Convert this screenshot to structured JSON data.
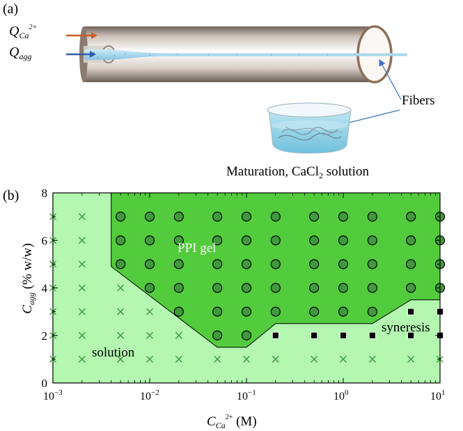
{
  "panel_a": {
    "label": "(a)",
    "q_ca": {
      "symbol": "Q",
      "sub": "Ca",
      "sup": "2+"
    },
    "q_agg": {
      "symbol": "Q",
      "sub": "agg"
    },
    "fibers_label": "Fibers",
    "maturation_label": "Maturation, CaCl",
    "maturation_sub": "2",
    "maturation_suffix": " solution",
    "colors": {
      "tube": "#a8998c",
      "fiber": "#a9d8ee",
      "dish_liquid": "#8fd0e4",
      "arrow_ca": "#c8602a",
      "arrow_agg": "#2f5ca8"
    }
  },
  "chart_data": {
    "type": "scatter",
    "panel_label": "(b)",
    "xscale": "log",
    "xlim": [
      0.001,
      10
    ],
    "ylim": [
      0,
      8
    ],
    "xticks": [
      {
        "value": 0.001,
        "base": "10",
        "exp": "−3"
      },
      {
        "value": 0.01,
        "base": "10",
        "exp": "−2"
      },
      {
        "value": 0.1,
        "base": "10",
        "exp": "−1"
      },
      {
        "value": 1,
        "base": "10",
        "exp": "0"
      },
      {
        "value": 10,
        "base": "10",
        "exp": "1"
      }
    ],
    "yticks": [
      "0",
      "2",
      "4",
      "6",
      "8"
    ],
    "xlabel": {
      "symbol": "C",
      "sub": "Ca",
      "sup": "2+",
      "unit": "(M)"
    },
    "ylabel": {
      "symbol": "C",
      "sub": "agg",
      "unit": "(% w/w)"
    },
    "region_labels": {
      "gel": "PPI gel",
      "solution": "solution",
      "syneresis": "syneresis"
    },
    "colors": {
      "solution_region": "#b3f7b0",
      "gel_region": "#52cc3c",
      "gel_marker": "#3f9a3a",
      "syneresis_marker": "#000000",
      "solution_marker": "#3a9a3a"
    },
    "gel_boundary": [
      [
        0.004,
        8
      ],
      [
        0.004,
        4.9
      ],
      [
        0.05,
        1.5
      ],
      [
        0.1,
        1.5
      ],
      [
        0.2,
        2.5
      ],
      [
        2,
        2.5
      ],
      [
        5,
        3.5
      ],
      [
        10,
        3.5
      ],
      [
        10,
        8
      ]
    ],
    "series": [
      {
        "marker": "x",
        "points": [
          [
            0.001,
            7
          ],
          [
            0.001,
            6
          ],
          [
            0.001,
            5
          ],
          [
            0.001,
            4
          ],
          [
            0.001,
            3
          ],
          [
            0.001,
            2
          ],
          [
            0.001,
            1
          ],
          [
            0.002,
            7
          ],
          [
            0.002,
            6
          ],
          [
            0.002,
            5
          ],
          [
            0.002,
            4
          ],
          [
            0.002,
            3
          ],
          [
            0.002,
            2
          ],
          [
            0.002,
            1
          ],
          [
            0.005,
            4
          ],
          [
            0.005,
            3
          ],
          [
            0.005,
            2
          ],
          [
            0.005,
            1
          ],
          [
            0.01,
            3
          ],
          [
            0.01,
            2
          ],
          [
            0.01,
            1
          ],
          [
            0.02,
            2
          ],
          [
            0.02,
            1
          ],
          [
            0.05,
            1
          ],
          [
            0.1,
            1
          ],
          [
            0.2,
            1
          ],
          [
            0.5,
            1
          ],
          [
            1,
            1
          ],
          [
            2,
            1
          ],
          [
            5,
            1
          ],
          [
            10,
            1
          ]
        ]
      },
      {
        "marker": "circle",
        "points": [
          [
            0.005,
            7
          ],
          [
            0.005,
            6
          ],
          [
            0.005,
            5
          ],
          [
            0.01,
            7
          ],
          [
            0.01,
            6
          ],
          [
            0.01,
            5
          ],
          [
            0.01,
            4
          ],
          [
            0.02,
            7
          ],
          [
            0.02,
            6
          ],
          [
            0.02,
            5
          ],
          [
            0.02,
            4
          ],
          [
            0.02,
            3
          ],
          [
            0.05,
            7
          ],
          [
            0.05,
            6
          ],
          [
            0.05,
            5
          ],
          [
            0.05,
            4
          ],
          [
            0.05,
            3
          ],
          [
            0.05,
            2
          ],
          [
            0.1,
            7
          ],
          [
            0.1,
            6
          ],
          [
            0.1,
            5
          ],
          [
            0.1,
            4
          ],
          [
            0.1,
            3
          ],
          [
            0.1,
            2
          ],
          [
            0.2,
            7
          ],
          [
            0.2,
            6
          ],
          [
            0.2,
            5
          ],
          [
            0.2,
            4
          ],
          [
            0.2,
            3
          ],
          [
            0.5,
            7
          ],
          [
            0.5,
            6
          ],
          [
            0.5,
            5
          ],
          [
            0.5,
            4
          ],
          [
            0.5,
            3
          ],
          [
            1,
            7
          ],
          [
            1,
            6
          ],
          [
            1,
            5
          ],
          [
            1,
            4
          ],
          [
            1,
            3
          ],
          [
            2,
            7
          ],
          [
            2,
            6
          ],
          [
            2,
            5
          ],
          [
            2,
            4
          ],
          [
            2,
            3
          ],
          [
            5,
            7
          ],
          [
            5,
            6
          ],
          [
            5,
            5
          ],
          [
            5,
            4
          ],
          [
            10,
            7
          ],
          [
            10,
            6
          ],
          [
            10,
            5
          ],
          [
            10,
            4
          ]
        ]
      },
      {
        "marker": "square",
        "points": [
          [
            0.2,
            2
          ],
          [
            0.5,
            2
          ],
          [
            1,
            2
          ],
          [
            2,
            2
          ],
          [
            5,
            2
          ],
          [
            5,
            3
          ],
          [
            10,
            2
          ],
          [
            10,
            3
          ]
        ]
      }
    ]
  }
}
